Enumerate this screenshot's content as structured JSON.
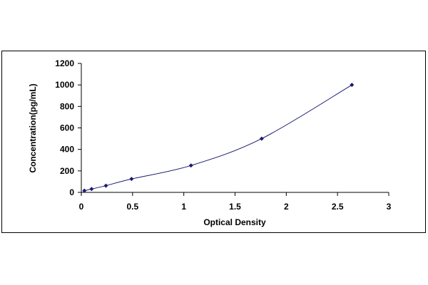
{
  "chart_data": {
    "type": "scatter",
    "title": "",
    "xlabel": "Optical Density",
    "ylabel": "Concentration(pg/mL)",
    "xlim": [
      0,
      3
    ],
    "ylim": [
      0,
      1200
    ],
    "x_ticks": [
      "0",
      "0.5",
      "1",
      "1.5",
      "2",
      "2.5",
      "3"
    ],
    "y_ticks": [
      "0",
      "200",
      "400",
      "600",
      "800",
      "1000",
      "1200"
    ],
    "grid": false,
    "legend": "none",
    "series": [
      {
        "x": [
          0.03,
          0.1,
          0.24,
          0.49,
          1.07,
          1.76,
          2.64
        ],
        "y": [
          15.6,
          31.2,
          62.5,
          125,
          250,
          500,
          1000
        ],
        "marker": "diamond",
        "color": "#1a1a6e",
        "line": "smooth"
      }
    ]
  }
}
